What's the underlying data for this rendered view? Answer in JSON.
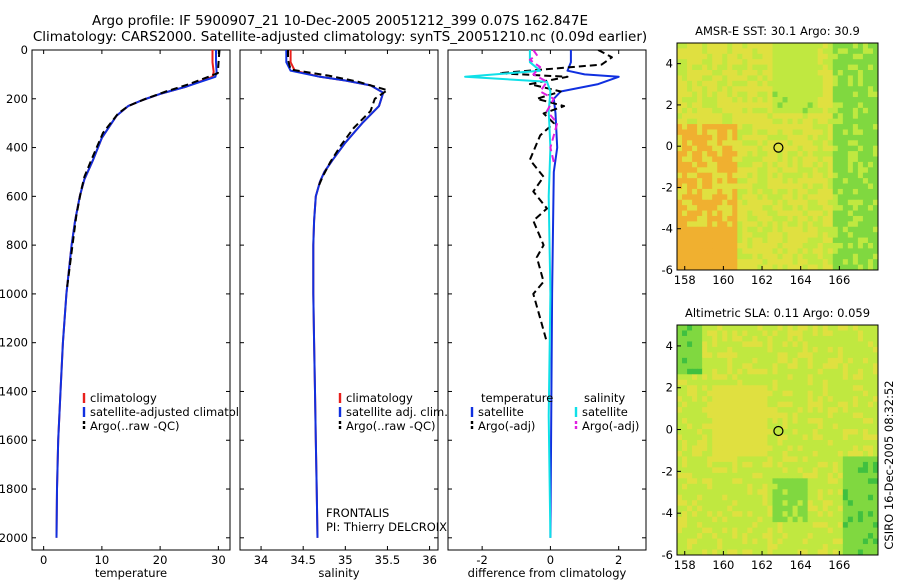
{
  "header": {
    "line1": "Argo profile: IF 5900907_21 10-Dec-2005 20051212_399 0.07S 162.847E",
    "line2": "Climatology: CARS2000. Satellite-adjusted climatology: synTS_20051210.nc (0.09d earlier)"
  },
  "footer_credit": "CSIRO 16-Dec-2005 08:32:52",
  "colors": {
    "climatology": "#e8201c",
    "satellite": "#1030e0",
    "argo": "#000000",
    "salinity_sat": "#10e0e8",
    "salinity_argo": "#e020e0"
  },
  "chart_data": [
    {
      "type": "line",
      "id": "temperature",
      "xlabel": "temperature",
      "ylabel": "",
      "xlim": [
        -2,
        32
      ],
      "ylim": [
        0,
        2050
      ],
      "y_reversed": true,
      "xticks": [
        0,
        10,
        20,
        30
      ],
      "yticks": [
        0,
        200,
        400,
        600,
        800,
        1000,
        1200,
        1400,
        1600,
        1800,
        2000
      ],
      "legend": {
        "placement": "lower-right",
        "entries": [
          "climatology",
          "satellite-adjusted climatology",
          "Argo(..raw -QC)"
        ]
      },
      "series": [
        {
          "name": "climatology",
          "color": "#e8201c",
          "dash": "solid",
          "x": [
            29.0,
            29.0,
            29.2,
            29.0,
            24.5,
            20.0,
            17.0,
            14.5,
            12.5,
            10.0,
            8.5,
            7.0,
            6.2,
            5.4,
            4.8,
            3.9,
            3.3,
            2.9,
            2.5,
            2.3,
            2.2
          ],
          "y": [
            0,
            50,
            90,
            110,
            150,
            180,
            205,
            230,
            270,
            360,
            450,
            530,
            600,
            700,
            800,
            1000,
            1200,
            1400,
            1600,
            1800,
            2000
          ]
        },
        {
          "name": "satellite-adjusted climatology",
          "color": "#1030e0",
          "dash": "solid",
          "x": [
            29.6,
            29.6,
            29.7,
            29.5,
            24.5,
            20.0,
            17.0,
            14.5,
            12.5,
            10.0,
            8.5,
            7.0,
            6.2,
            5.4,
            4.8,
            3.9,
            3.3,
            2.9,
            2.5,
            2.3,
            2.2
          ],
          "y": [
            0,
            50,
            90,
            110,
            150,
            180,
            205,
            230,
            270,
            360,
            450,
            530,
            600,
            700,
            800,
            1000,
            1200,
            1400,
            1600,
            1800,
            2000
          ]
        },
        {
          "name": "Argo(..raw -QC)",
          "color": "#000000",
          "dash": "dashed",
          "x": [
            30.2,
            30.1,
            30.0,
            29.9,
            25.0,
            21.0,
            17.5,
            14.5,
            12.8,
            10.2,
            8.2,
            7.0,
            6.4,
            5.6,
            5.0,
            4.0
          ],
          "y": [
            0,
            30,
            60,
            95,
            140,
            170,
            200,
            230,
            260,
            340,
            450,
            520,
            580,
            680,
            790,
            980
          ]
        }
      ]
    },
    {
      "type": "line",
      "id": "salinity",
      "xlabel": "salinity",
      "ylabel": "",
      "xlim": [
        33.75,
        36.1
      ],
      "ylim": [
        0,
        2050
      ],
      "y_reversed": true,
      "xticks": [
        34,
        34.5,
        35,
        35.5,
        36
      ],
      "xticklabels": [
        "34",
        "34.5",
        "35",
        "35.5",
        "36"
      ],
      "legend": {
        "placement": "lower-right",
        "entries": [
          "climatology",
          "satellite adj. clim.",
          "Argo(..raw -QC)"
        ]
      },
      "annotation": {
        "line1": "FRONTALIS",
        "line2": "PI: Thierry DELCROIX"
      },
      "series": [
        {
          "name": "climatology",
          "color": "#e8201c",
          "dash": "solid",
          "x": [
            34.35,
            34.35,
            34.4,
            34.7,
            35.0,
            35.3,
            35.45,
            35.4,
            35.2,
            35.0,
            34.85,
            34.75,
            34.7,
            34.65,
            34.63,
            34.62,
            34.62,
            34.63,
            34.64,
            34.65,
            34.66,
            34.67
          ],
          "y": [
            0,
            50,
            85,
            110,
            125,
            145,
            175,
            230,
            300,
            380,
            450,
            500,
            540,
            600,
            700,
            800,
            1000,
            1200,
            1400,
            1600,
            1800,
            2000
          ]
        },
        {
          "name": "satellite adj. clim.",
          "color": "#1030e0",
          "dash": "solid",
          "x": [
            34.3,
            34.3,
            34.35,
            34.7,
            35.0,
            35.3,
            35.45,
            35.4,
            35.2,
            35.0,
            34.85,
            34.75,
            34.7,
            34.65,
            34.63,
            34.62,
            34.62,
            34.63,
            34.64,
            34.65,
            34.66,
            34.67
          ],
          "y": [
            0,
            50,
            85,
            110,
            125,
            145,
            175,
            230,
            300,
            380,
            450,
            500,
            540,
            600,
            700,
            800,
            1000,
            1200,
            1400,
            1600,
            1800,
            2000
          ]
        },
        {
          "name": "Argo(..raw -QC)",
          "color": "#000000",
          "dash": "dashed",
          "x": [
            34.32,
            34.32,
            34.35,
            34.8,
            35.15,
            35.5,
            35.35,
            35.3,
            35.1,
            34.95,
            34.82,
            34.73,
            34.68
          ],
          "y": [
            0,
            40,
            80,
            105,
            130,
            165,
            200,
            250,
            320,
            390,
            460,
            520,
            560
          ]
        }
      ]
    },
    {
      "type": "line",
      "id": "difference",
      "xlabel": "difference from climatology",
      "ylabel": "",
      "xlim": [
        -3.0,
        2.8
      ],
      "ylim": [
        0,
        2050
      ],
      "y_reversed": true,
      "xticks": [
        -2,
        0,
        2
      ],
      "legend": {
        "placement": "lower-center",
        "columns": [
          {
            "heading": "temperature",
            "entries": [
              "satellite",
              "Argo(-adj)"
            ]
          },
          {
            "heading": "salinity",
            "entries": [
              "satellite",
              "Argo(-adj)"
            ]
          }
        ]
      },
      "series": [
        {
          "name": "temperature satellite",
          "color": "#1030e0",
          "dash": "solid",
          "x": [
            0.6,
            0.6,
            0.5,
            1.0,
            2.0,
            1.4,
            0.3,
            0.1,
            0.15,
            0.2,
            0.1,
            0.05,
            0.0
          ],
          "y": [
            0,
            50,
            85,
            100,
            110,
            140,
            170,
            200,
            260,
            400,
            500,
            1000,
            2000
          ]
        },
        {
          "name": "temperature Argo(-adj)",
          "color": "#000000",
          "dash": "dashed",
          "x": [
            1.4,
            1.8,
            1.5,
            -1.5,
            0.5,
            -0.6,
            0.3,
            -0.4,
            0.4,
            -0.2,
            0.1,
            -0.3,
            -0.6,
            -0.2,
            -0.5,
            -0.1,
            -0.5,
            -0.2,
            -0.4,
            -0.3,
            -0.2,
            -0.5,
            -0.3,
            -0.1
          ],
          "y": [
            0,
            30,
            60,
            95,
            110,
            140,
            170,
            200,
            230,
            260,
            300,
            350,
            450,
            520,
            580,
            650,
            700,
            800,
            850,
            900,
            950,
            1000,
            1100,
            1200
          ]
        },
        {
          "name": "salinity satellite",
          "color": "#10e0e8",
          "dash": "solid",
          "x": [
            -0.6,
            -0.6,
            -0.3,
            -2.5,
            -0.1,
            0.0,
            -0.05,
            0.0,
            -0.05,
            0.0,
            -0.05,
            0.0
          ],
          "y": [
            0,
            50,
            85,
            110,
            130,
            170,
            250,
            400,
            600,
            1000,
            1500,
            2000
          ]
        },
        {
          "name": "salinity Argo(-adj)",
          "color": "#e020e0",
          "dash": "dashed",
          "x": [
            -0.5,
            -0.4,
            -0.6,
            -0.3,
            -0.5,
            -0.1,
            -0.3,
            0.1,
            -0.1,
            0.2,
            0.0,
            0.1
          ],
          "y": [
            0,
            20,
            40,
            70,
            100,
            130,
            170,
            200,
            250,
            300,
            400,
            460
          ]
        }
      ]
    },
    {
      "type": "heatmap",
      "id": "sst-map",
      "title": "AMSR-E SST: 30.1 Argo: 30.9",
      "xlim": [
        157.6,
        168.0
      ],
      "ylim": [
        -6.0,
        5.0
      ],
      "xticks": [
        158,
        160,
        162,
        164,
        166
      ],
      "yticks": [
        4,
        2,
        0,
        -2,
        -4,
        -6
      ],
      "argo_position": {
        "lon": 162.847,
        "lat": -0.07
      },
      "palette": [
        "#40c040",
        "#80d840",
        "#c0e840",
        "#e0e040",
        "#f0b030"
      ]
    },
    {
      "type": "heatmap",
      "id": "sla-map",
      "title": "Altimetric SLA: 0.11 Argo: 0.059",
      "xlim": [
        157.6,
        168.0
      ],
      "ylim": [
        -6.0,
        5.0
      ],
      "xticks": [
        158,
        160,
        162,
        164,
        166
      ],
      "yticks": [
        4,
        2,
        0,
        -2,
        -4,
        -6
      ],
      "argo_position": {
        "lon": 162.847,
        "lat": -0.07
      },
      "palette": [
        "#40c040",
        "#80d840",
        "#c0e840",
        "#e0e040",
        "#f0c040"
      ]
    }
  ]
}
